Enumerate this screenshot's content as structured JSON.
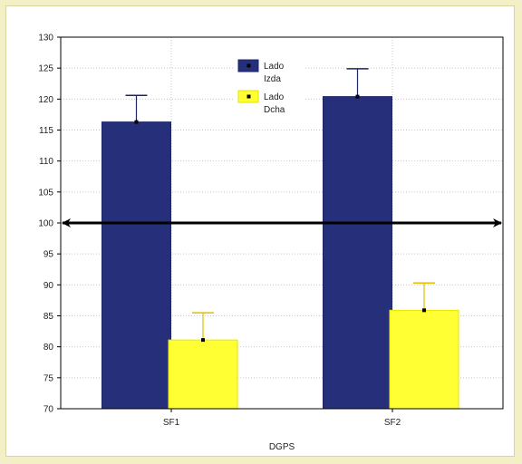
{
  "chart_data": {
    "type": "bar",
    "title": "",
    "xlabel": "DGPS",
    "ylabel": "",
    "categories": [
      "SF1",
      "SF2"
    ],
    "series": [
      {
        "name": "Lado Izda",
        "legend_lines": [
          "Lado",
          "Izda"
        ],
        "color": "#26307a",
        "values": [
          116.3,
          120.4
        ],
        "error": [
          4.3,
          4.5
        ]
      },
      {
        "name": "Lado Dcha",
        "legend_lines": [
          "Lado",
          "Dcha"
        ],
        "color": "#ffff33",
        "values": [
          81.1,
          85.9
        ],
        "error": [
          4.4,
          4.4
        ]
      }
    ],
    "ylim": [
      70,
      130
    ],
    "yticks": [
      70,
      75,
      80,
      85,
      90,
      95,
      100,
      105,
      110,
      115,
      120,
      125,
      130
    ],
    "reference_line": {
      "value": 100,
      "style": "double-arrow",
      "color": "#000000"
    },
    "grid": true,
    "legend_position": "top-center"
  }
}
